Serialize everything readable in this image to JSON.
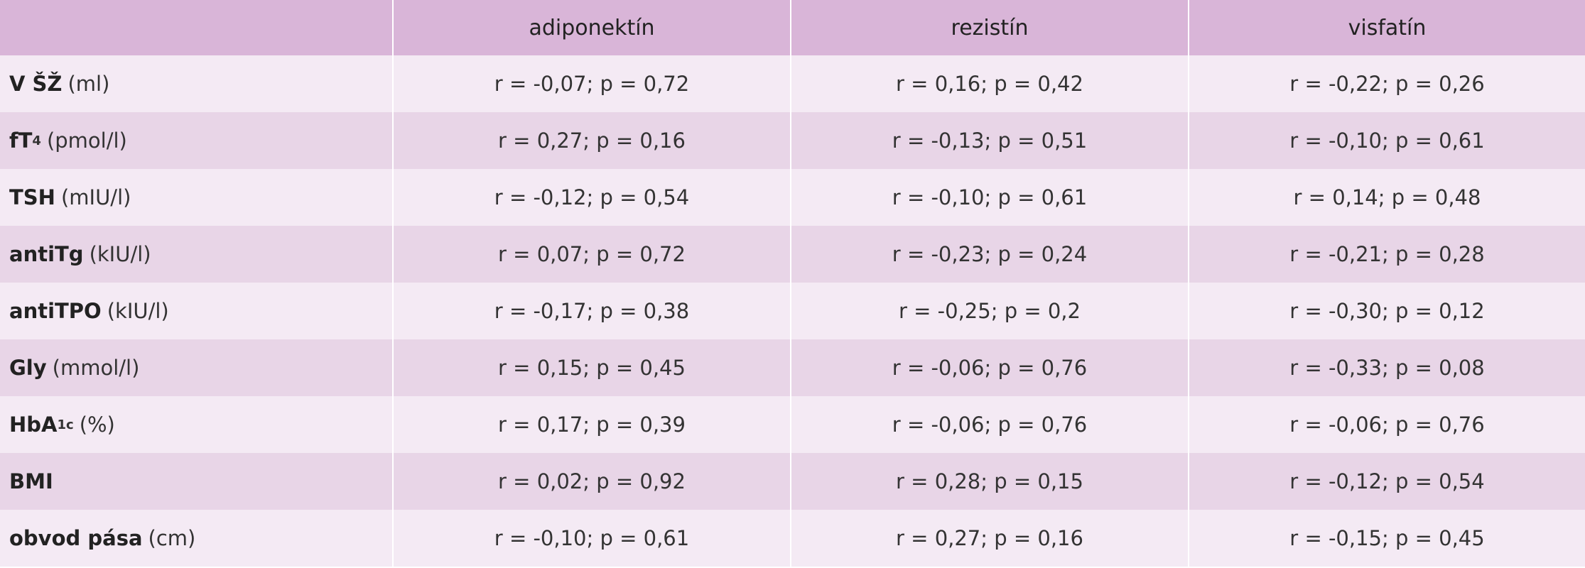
{
  "table": {
    "columns": [
      "adiponektín",
      "rezistín",
      "visfatín"
    ],
    "rows": [
      {
        "name": "V ŠŽ",
        "unit": "(ml)",
        "cells": [
          "r = -0,07; p = 0,72",
          "r = 0,16; p = 0,42",
          "r = -0,22; p = 0,26"
        ]
      },
      {
        "name": "fT",
        "sub": "4",
        "unit": "(pmol/l)",
        "cells": [
          "r = 0,27; p = 0,16",
          "r = -0,13; p = 0,51",
          "r = -0,10; p = 0,61"
        ]
      },
      {
        "name": "TSH",
        "unit": "(mIU/l)",
        "cells": [
          "r = -0,12; p = 0,54",
          "r = -0,10; p = 0,61",
          "r = 0,14; p = 0,48"
        ]
      },
      {
        "name": "antiTg",
        "unit": "(kIU/l)",
        "cells": [
          "r = 0,07; p = 0,72",
          "r = -0,23; p = 0,24",
          "r = -0,21; p = 0,28"
        ]
      },
      {
        "name": "antiTPO",
        "unit": "(kIU/l)",
        "cells": [
          "r = -0,17; p = 0,38",
          "r = -0,25; p = 0,2",
          "r = -0,30; p = 0,12"
        ]
      },
      {
        "name": "Gly",
        "unit": "(mmol/l)",
        "cells": [
          "r = 0,15; p = 0,45",
          "r = -0,06; p = 0,76",
          "r = -0,33; p = 0,08"
        ]
      },
      {
        "name": "HbA",
        "sub": "1c",
        "unit": "(%)",
        "cells": [
          "r = 0,17; p = 0,39",
          "r = -0,06; p = 0,76",
          "r = -0,06; p = 0,76"
        ]
      },
      {
        "name": "BMI",
        "cells": [
          "r = 0,02; p = 0,92",
          "r = 0,28; p = 0,15",
          "r = -0,12; p = 0,54"
        ]
      },
      {
        "name": "obvod pása",
        "unit": "(cm)",
        "cells": [
          "r = -0,10; p = 0,61",
          "r = 0,27; p = 0,16",
          "r = -0,15; p = 0,45"
        ]
      }
    ]
  }
}
